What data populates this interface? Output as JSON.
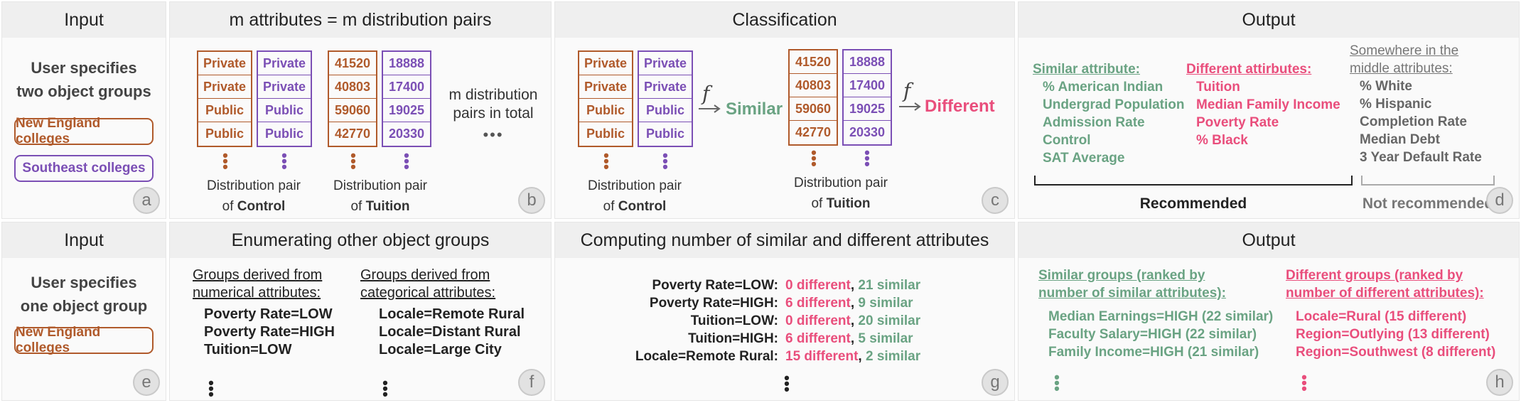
{
  "panels": {
    "a": {
      "header": "Input",
      "line1": "User specifies",
      "line2": "two object groups",
      "group1": "New England colleges",
      "group2": "Southeast colleges",
      "badge": "a"
    },
    "b": {
      "header": "m attributes = m distribution pairs",
      "control_left": [
        "Private",
        "Private",
        "Public",
        "Public"
      ],
      "control_right": [
        "Private",
        "Private",
        "Public",
        "Public"
      ],
      "tuition_left": [
        "41520",
        "40803",
        "59060",
        "42770"
      ],
      "tuition_right": [
        "18888",
        "17400",
        "19025",
        "20330"
      ],
      "caption_control_top": "Distribution pair",
      "caption_control_of": "of",
      "caption_control_name": "Control",
      "caption_tuition_top": "Distribution pair",
      "caption_tuition_of": "of",
      "caption_tuition_name": "Tuition",
      "side_text1": "m distribution",
      "side_text2": "pairs in total",
      "ellipsis": "•••",
      "badge": "b"
    },
    "c": {
      "header": "Classification",
      "control_left": [
        "Private",
        "Private",
        "Public",
        "Public"
      ],
      "control_right": [
        "Private",
        "Private",
        "Public",
        "Public"
      ],
      "tuition_left": [
        "41520",
        "40803",
        "59060",
        "42770"
      ],
      "tuition_right": [
        "18888",
        "17400",
        "19025",
        "20330"
      ],
      "f_symbol": "f",
      "similar": "Similar",
      "different": "Different",
      "caption_control_top": "Distribution pair",
      "caption_control_of": "of",
      "caption_control_name": "Control",
      "caption_tuition_top": "Distribution pair",
      "caption_tuition_of": "of",
      "caption_tuition_name": "Tuition",
      "badge": "c"
    },
    "d": {
      "header": "Output",
      "similar_title": "Similar attribute:",
      "similar_items": [
        "% American Indian",
        "Undergrad Population",
        "Admission Rate",
        "Control",
        "SAT Average"
      ],
      "different_title": "Different attirbutes:",
      "different_items": [
        "Tuition",
        "Median Family Income",
        "Poverty Rate",
        "% Black"
      ],
      "middle_title1": "Somewhere in the",
      "middle_title2": "middle attributes:",
      "middle_items": [
        "% White",
        "% Hispanic",
        "Completion Rate",
        "Median Debt",
        "3 Year Default Rate"
      ],
      "recommended": "Recommended",
      "not_recommended": "Not recommended",
      "badge": "d"
    },
    "e": {
      "header": "Input",
      "line1": "User specifies",
      "line2": "one object group",
      "group1": "New England colleges",
      "badge": "e"
    },
    "f": {
      "header": "Enumerating other object groups",
      "num_title1": "Groups derived from",
      "num_title2": "numerical attributes:",
      "num_items": [
        "Poverty Rate=LOW",
        "Poverty Rate=HIGH",
        "Tuition=LOW"
      ],
      "cat_title1": "Groups derived from",
      "cat_title2": "categorical attributes:",
      "cat_items": [
        "Locale=Remote Rural",
        "Locale=Distant Rural",
        "Locale=Large City"
      ],
      "badge": "f"
    },
    "g": {
      "header": "Computing number of similar and different attributes",
      "rows": [
        {
          "label": "Poverty Rate=LOW:",
          "diff": "0 different",
          "sim": "21 similar"
        },
        {
          "label": "Poverty Rate=HIGH:",
          "diff": "6 different",
          "sim": "9 similar"
        },
        {
          "label": "Tuition=LOW:",
          "diff": "0 different",
          "sim": "20 similar"
        },
        {
          "label": "Tuition=HIGH:",
          "diff": "6 different",
          "sim": "5 similar"
        },
        {
          "label": "Locale=Remote Rural:",
          "diff": "15 different",
          "sim": "2 similar"
        }
      ],
      "comma": ",",
      "badge": "g"
    },
    "h": {
      "header": "Output",
      "similar_title1": "Similar groups (ranked by",
      "similar_title2": "number of similar attributes):",
      "similar_items": [
        "Median Earnings=HIGH (22 similar)",
        "Faculty Salary=HIGH (22 similar)",
        "Family Income=HIGH (21 similar)"
      ],
      "different_title1": "Different groups (ranked by",
      "different_title2": "number of different attributes):",
      "different_items": [
        "Locale=Rural (15 different)",
        "Region=Outlying (13 different)",
        "Region=Southwest (8 different)"
      ],
      "badge": "h"
    }
  },
  "colors": {
    "brown": "#b05a2b",
    "purple": "#7b4fb5",
    "green": "#6aa383",
    "pink": "#e94e7c",
    "grey": "#777777"
  }
}
